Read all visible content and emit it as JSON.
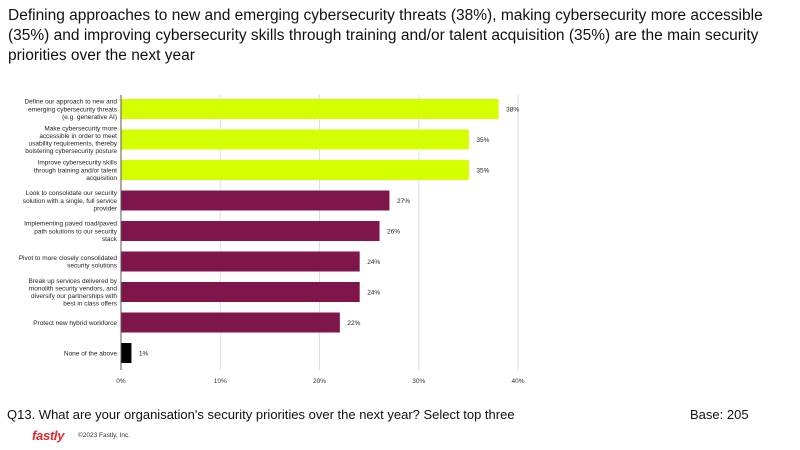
{
  "title": "Defining approaches to new and emerging cybersecurity threats (38%), making cybersecurity more accessible (35%) and improving cybersecurity skills through training and/or talent acquisition (35%) are the main security priorities over the next year",
  "question": "Q13.  What are your organisation's security priorities over the next year? Select top three",
  "base": "Base: 205",
  "logo": "fastly",
  "copyright": "©2023 Fastly, Inc.",
  "chart_data": {
    "type": "bar",
    "orientation": "horizontal",
    "categories": [
      [
        "Define our approach to new and",
        "emerging cybersecurity threats",
        "(e.g. generative AI)"
      ],
      [
        "Make cybersecurity more",
        "accessible in order to meet",
        "usability requirements, thereby",
        "bolstering cybersecurity posture"
      ],
      [
        "Improve cybersecurity skills",
        "through training and/or talent",
        "acquisition"
      ],
      [
        "Look to consolidate our security",
        "solution with a single, full service",
        "provider"
      ],
      [
        "Implementing paved road/paved",
        "path solutions to our security",
        "stack"
      ],
      [
        "Pivot to more closely consolidated",
        "security solutions"
      ],
      [
        "Break up services delivered by",
        "monolith security vendors, and",
        "diversify our partnerships with",
        "best in class offers"
      ],
      [
        "Protect new hybrid workforce"
      ],
      [
        "None of the above"
      ]
    ],
    "values": [
      38,
      35,
      35,
      27,
      26,
      24,
      24,
      22,
      1
    ],
    "value_labels": [
      "38%",
      "35%",
      "35%",
      "27%",
      "26%",
      "24%",
      "24%",
      "22%",
      "1%"
    ],
    "colors": [
      "#d4ff00",
      "#d4ff00",
      "#d4ff00",
      "#7e164c",
      "#7e164c",
      "#7e164c",
      "#7e164c",
      "#7e164c",
      "#000000"
    ],
    "xlim": [
      0,
      40
    ],
    "xticks": [
      "0%",
      "10%",
      "20%",
      "30%",
      "40%"
    ],
    "grid": true
  }
}
